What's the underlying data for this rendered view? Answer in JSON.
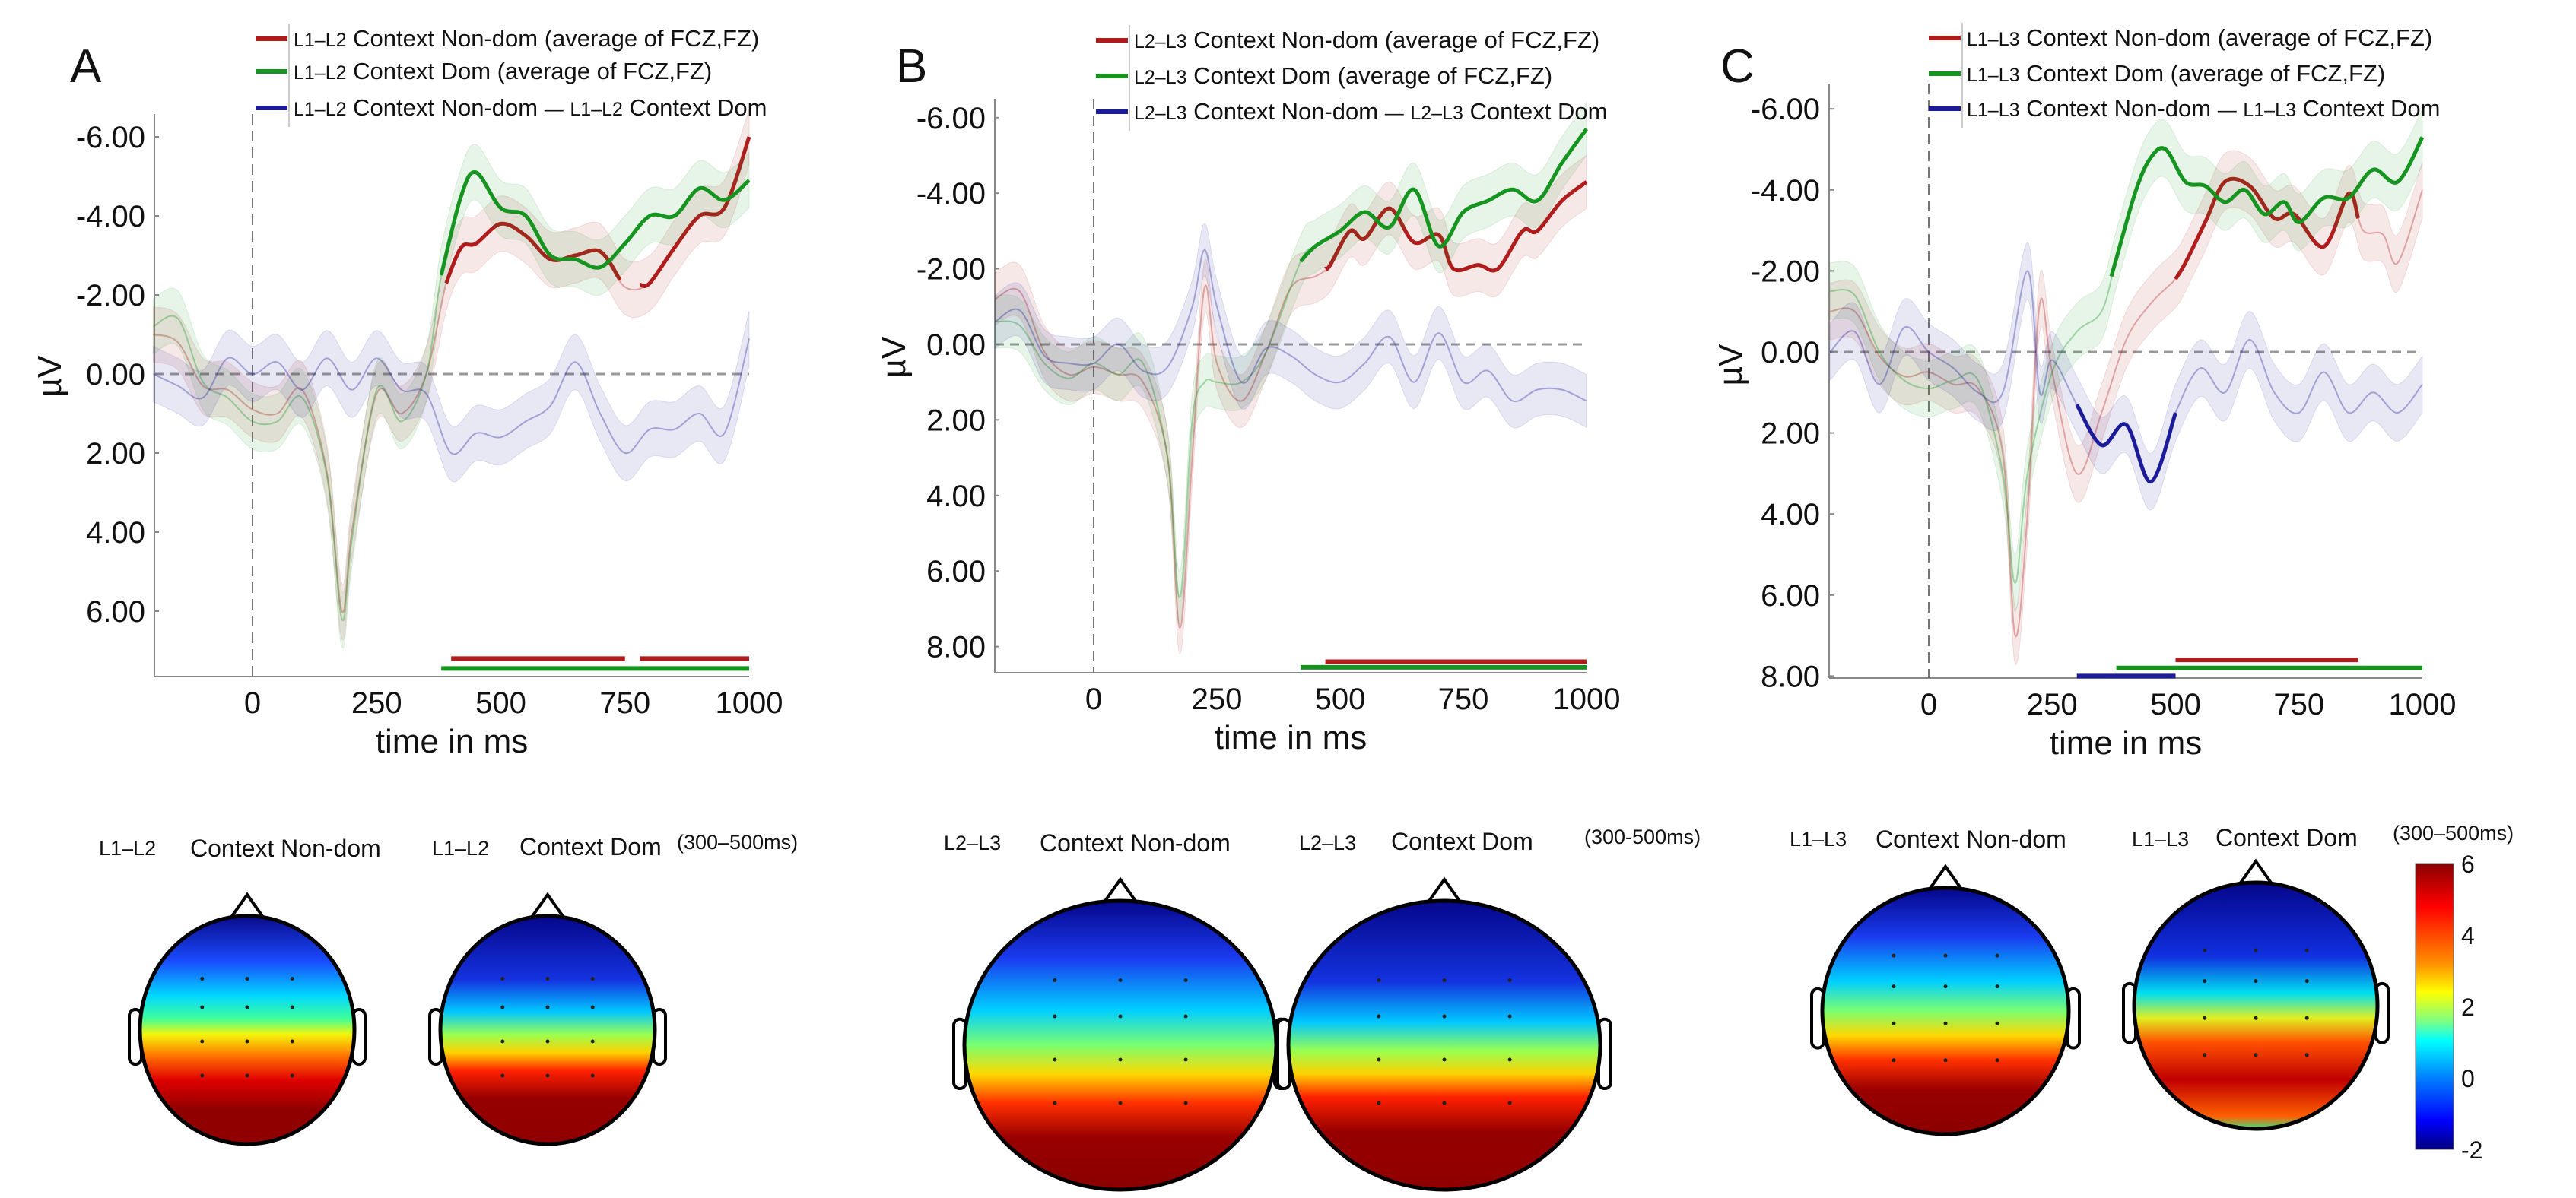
{
  "chart_data": [
    {
      "type": "line",
      "panel_label": "A",
      "xlabel": "time in ms",
      "ylabel": "µV",
      "xlim": [
        -200,
        1000
      ],
      "ylim_inverted": [
        -6.8,
        7.6
      ],
      "xticks": [
        "0",
        "250",
        "500",
        "750",
        "1000"
      ],
      "xtick_values": [
        0,
        250,
        500,
        750,
        1000
      ],
      "yticks": [
        "-6.00",
        "-4.00",
        "-2.00",
        "0.00",
        "2.00",
        "4.00",
        "6.00"
      ],
      "ytick_values": [
        -6,
        -4,
        -2,
        0,
        2,
        4,
        6
      ],
      "legend": [
        {
          "prefix": "L1–L2",
          "text": "Context Non-dom (average of FCZ,FZ)",
          "color": "#b01c1c"
        },
        {
          "prefix": "L1–L2",
          "text": "Context Dom (average of FCZ,FZ)",
          "color": "#15941f"
        },
        {
          "prefix": "L1–L2",
          "text": "Context Non-dom",
          "sep": "—",
          "prefix2": "L1–L2",
          "text2": "Context Dom",
          "color": "#1c1c9a"
        }
      ],
      "series": [
        {
          "name": "L1–L2 Context Non-dom",
          "color": "#b01c1c",
          "x": [
            -200,
            -150,
            -100,
            -50,
            0,
            50,
            100,
            150,
            180,
            200,
            250,
            300,
            350,
            390,
            420,
            450,
            500,
            550,
            600,
            650,
            700,
            750,
            800,
            850,
            900,
            950,
            1000
          ],
          "y": [
            -1.0,
            -0.8,
            0.3,
            0.4,
            0.9,
            1.0,
            0.4,
            2.5,
            6.0,
            4.0,
            0.5,
            1.0,
            0.0,
            -2.3,
            -3.2,
            -3.3,
            -3.8,
            -3.5,
            -2.9,
            -3.0,
            -3.1,
            -2.2,
            -2.3,
            -3.2,
            -4.0,
            -4.2,
            -6.0
          ],
          "bold_ranges": [
            [
              390,
              740
            ],
            [
              780,
              1000
            ]
          ]
        },
        {
          "name": "L1–L2 Context Dom",
          "color": "#15941f",
          "x": [
            -200,
            -150,
            -100,
            -50,
            0,
            50,
            100,
            150,
            180,
            200,
            250,
            300,
            350,
            380,
            420,
            450,
            500,
            550,
            600,
            650,
            700,
            750,
            800,
            850,
            900,
            950,
            1000
          ],
          "y": [
            -1.2,
            -1.4,
            0.2,
            0.6,
            1.2,
            1.2,
            0.6,
            2.6,
            6.2,
            4.2,
            0.4,
            1.2,
            0.0,
            -2.5,
            -4.5,
            -5.1,
            -4.2,
            -4.0,
            -3.0,
            -2.9,
            -2.7,
            -3.3,
            -4.0,
            -4.0,
            -4.7,
            -4.4,
            -4.9
          ],
          "bold_ranges": [
            [
              380,
              1000
            ]
          ]
        },
        {
          "name": "L1–L2 Context Non-dom − L1–L2 Context Dom",
          "color": "#1c1c9a",
          "x": [
            -200,
            -150,
            -100,
            -50,
            0,
            50,
            100,
            150,
            200,
            250,
            300,
            350,
            400,
            450,
            500,
            550,
            600,
            650,
            700,
            750,
            800,
            850,
            900,
            950,
            1000
          ],
          "y": [
            0,
            0.3,
            0.6,
            -0.4,
            0,
            -0.3,
            0.4,
            -0.4,
            0.4,
            -0.4,
            0.4,
            0.5,
            2.0,
            1.5,
            1.6,
            1.2,
            0.8,
            -0.3,
            1.0,
            2.0,
            1.4,
            1.4,
            1.0,
            1.5,
            -0.9
          ],
          "bold_ranges": []
        }
      ],
      "significance_bars": [
        {
          "color": "#b01c1c",
          "from": 400,
          "to": 750,
          "level": 7.2
        },
        {
          "color": "#b01c1c",
          "from": 780,
          "to": 1000,
          "level": 7.2
        },
        {
          "color": "#15941f",
          "from": 380,
          "to": 1000,
          "level": 7.45
        }
      ]
    },
    {
      "type": "line",
      "panel_label": "B",
      "xlabel": "time in ms",
      "ylabel": "µV",
      "xlim": [
        -200,
        1000
      ],
      "ylim_inverted": [
        -6.5,
        8.6
      ],
      "xticks": [
        "0",
        "250",
        "500",
        "750",
        "1000"
      ],
      "xtick_values": [
        0,
        250,
        500,
        750,
        1000
      ],
      "yticks": [
        "-6.00",
        "-4.00",
        "-2.00",
        "0.00",
        "2.00",
        "4.00",
        "6.00",
        "8.00"
      ],
      "ytick_values": [
        -6,
        -4,
        -2,
        0,
        2,
        4,
        6,
        8
      ],
      "legend": [
        {
          "prefix": "L2–L3",
          "text": "Context Non-dom (average of FCZ,FZ)",
          "color": "#b01c1c"
        },
        {
          "prefix": "L2–L3",
          "text": "Context Dom (average of FCZ,FZ)",
          "color": "#15941f"
        },
        {
          "prefix": "L2–L3",
          "text": "Context Non-dom",
          "sep": "—",
          "prefix2": "L2–L3",
          "text2": "Context Dom",
          "color": "#1c1c9a"
        }
      ],
      "series": [
        {
          "name": "L2–L3 Context Non-dom",
          "color": "#b01c1c",
          "x": [
            -200,
            -150,
            -100,
            -50,
            0,
            50,
            100,
            150,
            175,
            200,
            225,
            250,
            300,
            350,
            400,
            450,
            480,
            520,
            550,
            600,
            650,
            700,
            730,
            780,
            820,
            870,
            900,
            950,
            1000
          ],
          "y": [
            -1.2,
            -1.4,
            0.2,
            0.8,
            0.6,
            0.8,
            1.0,
            3.0,
            7.5,
            3.0,
            -1.5,
            0.5,
            1.5,
            0.2,
            -1.5,
            -1.8,
            -2.1,
            -3.0,
            -2.8,
            -3.6,
            -2.7,
            -2.9,
            -2.0,
            -2.1,
            -2.0,
            -3.0,
            -3.0,
            -3.8,
            -4.3
          ],
          "bold_ranges": [
            [
              470,
              1000
            ]
          ]
        },
        {
          "name": "L2–L3 Context Dom",
          "color": "#15941f",
          "x": [
            -200,
            -150,
            -100,
            -50,
            0,
            50,
            100,
            150,
            175,
            200,
            225,
            250,
            300,
            350,
            420,
            450,
            500,
            550,
            600,
            650,
            700,
            750,
            800,
            850,
            900,
            950,
            1000
          ],
          "y": [
            -0.6,
            -0.5,
            0.5,
            0.9,
            0.5,
            0.8,
            0.5,
            3.0,
            6.7,
            2.0,
            1.0,
            1.0,
            1.0,
            0.2,
            -2.2,
            -2.6,
            -3.0,
            -3.5,
            -3.1,
            -4.1,
            -2.6,
            -3.5,
            -3.8,
            -4.1,
            -3.8,
            -4.8,
            -5.7
          ],
          "bold_ranges": [
            [
              420,
              1000
            ]
          ]
        },
        {
          "name": "L2–L3 Context Non-dom − L2–L3 Context Dom",
          "color": "#1c1c9a",
          "x": [
            -200,
            -150,
            -100,
            -50,
            0,
            50,
            100,
            150,
            200,
            225,
            250,
            300,
            350,
            400,
            450,
            500,
            550,
            600,
            650,
            700,
            750,
            800,
            850,
            900,
            950,
            1000
          ],
          "y": [
            -0.6,
            -0.9,
            0.3,
            0.5,
            0.5,
            0.0,
            0.7,
            0.6,
            -1.0,
            -2.5,
            -1.0,
            1.0,
            0.1,
            0.3,
            0.8,
            1.0,
            0.5,
            -0.2,
            1.0,
            -0.3,
            1.0,
            0.7,
            1.5,
            1.2,
            1.2,
            1.5
          ],
          "bold_ranges": []
        }
      ],
      "significance_bars": [
        {
          "color": "#b01c1c",
          "from": 470,
          "to": 1000,
          "level": 8.4
        },
        {
          "color": "#15941f",
          "from": 420,
          "to": 1000,
          "level": 8.55
        }
      ]
    },
    {
      "type": "line",
      "panel_label": "C",
      "xlabel": "time in ms",
      "ylabel": "µV",
      "xlim": [
        -200,
        1000
      ],
      "ylim_inverted": [
        -6.5,
        8.0
      ],
      "xticks": [
        "0",
        "250",
        "500",
        "750",
        "1000"
      ],
      "xtick_values": [
        0,
        250,
        500,
        750,
        1000
      ],
      "yticks": [
        "-6.00",
        "-4.00",
        "-2.00",
        "0.00",
        "2.00",
        "4.00",
        "6.00",
        "8.00"
      ],
      "ytick_values": [
        -6,
        -4,
        -2,
        0,
        2,
        4,
        6,
        8
      ],
      "legend": [
        {
          "prefix": "L1–L3",
          "text": "Context Non-dom (average of FCZ,FZ)",
          "color": "#b01c1c"
        },
        {
          "prefix": "L1–L3",
          "text": "Context Dom (average of FCZ,FZ)",
          "color": "#15941f"
        },
        {
          "prefix": "L1–L3",
          "text": "Context Non-dom",
          "sep": "—",
          "prefix2": "L1–L3",
          "text2": "Context Dom",
          "color": "#1c1c9a"
        }
      ],
      "series": [
        {
          "name": "L1–L3 Context Non-dom",
          "color": "#b01c1c",
          "x": [
            -200,
            -150,
            -100,
            -50,
            0,
            50,
            100,
            150,
            175,
            200,
            225,
            250,
            300,
            350,
            400,
            450,
            500,
            520,
            560,
            600,
            650,
            700,
            740,
            800,
            850,
            880,
            920,
            950,
            1000
          ],
          "y": [
            -1.0,
            -1.0,
            0.1,
            0.6,
            0.5,
            0.8,
            0.9,
            2.5,
            7.0,
            4.0,
            -1.2,
            0.5,
            3.0,
            1.5,
            -0.3,
            -1.2,
            -1.8,
            -2.2,
            -3.2,
            -4.2,
            -4.1,
            -3.3,
            -3.4,
            -2.6,
            -3.9,
            -3.0,
            -2.9,
            -2.2,
            -4.0
          ],
          "bold_ranges": [
            [
              500,
              870
            ]
          ]
        },
        {
          "name": "L1–L3 Context Dom",
          "color": "#15941f",
          "x": [
            -200,
            -150,
            -100,
            -50,
            0,
            50,
            100,
            150,
            175,
            200,
            250,
            300,
            350,
            380,
            420,
            450,
            480,
            520,
            560,
            600,
            640,
            680,
            720,
            750,
            800,
            850,
            900,
            950,
            1000
          ],
          "y": [
            -1.5,
            -1.4,
            0.0,
            0.7,
            0.9,
            0.7,
            0.7,
            3.0,
            5.7,
            3.0,
            0.5,
            -0.5,
            -1.0,
            -2.3,
            -4.0,
            -4.8,
            -5.0,
            -4.2,
            -4.1,
            -3.7,
            -4.0,
            -3.4,
            -3.7,
            -3.2,
            -3.8,
            -3.8,
            -4.5,
            -4.2,
            -5.3
          ],
          "bold_ranges": [
            [
              370,
              1000
            ]
          ]
        },
        {
          "name": "L1–L3 Context Non-dom − L1–L3 Context Dom",
          "color": "#1c1c9a",
          "x": [
            -200,
            -150,
            -100,
            -50,
            0,
            50,
            100,
            150,
            200,
            225,
            250,
            300,
            350,
            400,
            450,
            500,
            550,
            600,
            650,
            700,
            750,
            800,
            850,
            900,
            950,
            1000
          ],
          "y": [
            0,
            -0.5,
            0.8,
            -0.6,
            0,
            0.4,
            1.0,
            1.0,
            -2.0,
            1.0,
            0.2,
            1.3,
            2.3,
            1.8,
            3.2,
            1.5,
            0.4,
            1.0,
            -0.3,
            1.0,
            1.5,
            0.5,
            1.5,
            1.0,
            1.5,
            0.8
          ],
          "bold_ranges": [
            [
              300,
              500
            ]
          ]
        }
      ],
      "significance_bars": [
        {
          "color": "#b01c1c",
          "from": 500,
          "to": 870,
          "level": 7.6
        },
        {
          "color": "#15941f",
          "from": 380,
          "to": 1000,
          "level": 7.8
        },
        {
          "color": "#1c1c9a",
          "from": 300,
          "to": 500,
          "level": 8.0
        }
      ]
    }
  ],
  "topomaps": {
    "groups": [
      {
        "prefix1": "L1–L2",
        "title1": "Context Non-dom",
        "prefix2": "L1–L2",
        "title2": "Context Dom",
        "window": "(300–500ms)"
      },
      {
        "prefix1": "L2–L3",
        "title1": "Context Non-dom",
        "prefix2": "L2–L3",
        "title2": "Context Dom",
        "window": "(300-500ms)"
      },
      {
        "prefix1": "L1–L3",
        "title1": "Context Non-dom",
        "prefix2": "L1–L3",
        "title2": "Context Dom",
        "window": "(300–500ms)"
      }
    ],
    "colorbar": {
      "range": [
        -2,
        6
      ],
      "ticks": [
        "6",
        "4",
        "2",
        "0",
        "-2"
      ],
      "tick_values": [
        6,
        4,
        2,
        0,
        -2
      ]
    }
  }
}
